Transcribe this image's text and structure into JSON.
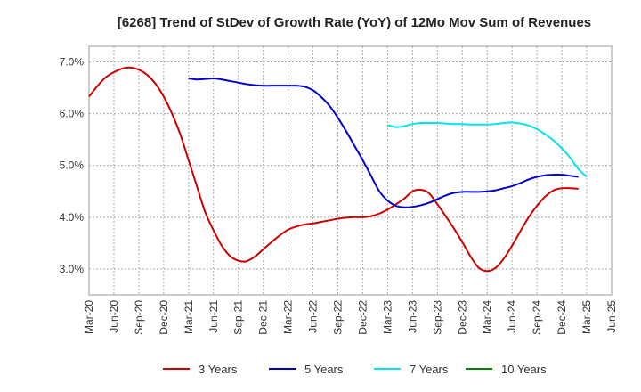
{
  "chart_data": {
    "type": "line",
    "title": "[6268]  Trend of StDev of Growth Rate (YoY) of 12Mo Mov Sum of Revenues",
    "xlabel": "",
    "ylabel": "",
    "x_ticks": [
      "Mar-20",
      "Jun-20",
      "Sep-20",
      "Dec-20",
      "Mar-21",
      "Jun-21",
      "Sep-21",
      "Dec-21",
      "Mar-22",
      "Jun-22",
      "Sep-22",
      "Dec-22",
      "Mar-23",
      "Jun-23",
      "Sep-23",
      "Dec-23",
      "Mar-24",
      "Jun-24",
      "Sep-24",
      "Dec-24",
      "Mar-25",
      "Jun-25"
    ],
    "y_ticks": [
      "3.0%",
      "4.0%",
      "5.0%",
      "6.0%",
      "7.0%"
    ],
    "y_tick_values": [
      3.0,
      4.0,
      5.0,
      6.0,
      7.0
    ],
    "ylim": [
      2.5,
      7.3
    ],
    "x_range_months": [
      0,
      63
    ],
    "grid": true,
    "legend_position": "bottom",
    "series": [
      {
        "name": "3 Years",
        "color": "#cc0000",
        "points": [
          [
            0,
            6.33
          ],
          [
            1,
            6.53
          ],
          [
            2,
            6.7
          ],
          [
            3,
            6.8
          ],
          [
            4,
            6.87
          ],
          [
            5,
            6.89
          ],
          [
            6,
            6.85
          ],
          [
            7,
            6.75
          ],
          [
            8,
            6.58
          ],
          [
            9,
            6.33
          ],
          [
            10,
            6.0
          ],
          [
            11,
            5.6
          ],
          [
            12,
            5.1
          ],
          [
            13,
            4.6
          ],
          [
            14,
            4.1
          ],
          [
            15,
            3.75
          ],
          [
            16,
            3.45
          ],
          [
            17,
            3.25
          ],
          [
            18,
            3.16
          ],
          [
            19,
            3.15
          ],
          [
            20,
            3.24
          ],
          [
            21,
            3.38
          ],
          [
            22,
            3.52
          ],
          [
            23,
            3.65
          ],
          [
            24,
            3.76
          ],
          [
            25,
            3.82
          ],
          [
            26,
            3.86
          ],
          [
            27,
            3.88
          ],
          [
            28,
            3.91
          ],
          [
            29,
            3.94
          ],
          [
            30,
            3.97
          ],
          [
            31,
            3.99
          ],
          [
            32,
            4.0
          ],
          [
            33,
            4.0
          ],
          [
            34,
            4.02
          ],
          [
            35,
            4.07
          ],
          [
            36,
            4.15
          ],
          [
            37,
            4.25
          ],
          [
            38,
            4.36
          ],
          [
            39,
            4.5
          ],
          [
            40,
            4.53
          ],
          [
            41,
            4.46
          ],
          [
            42,
            4.25
          ],
          [
            43,
            4.02
          ],
          [
            44,
            3.78
          ],
          [
            45,
            3.52
          ],
          [
            46,
            3.24
          ],
          [
            47,
            3.02
          ],
          [
            48,
            2.96
          ],
          [
            49,
            3.02
          ],
          [
            50,
            3.2
          ],
          [
            51,
            3.45
          ],
          [
            52,
            3.73
          ],
          [
            53,
            4.0
          ],
          [
            54,
            4.22
          ],
          [
            55,
            4.4
          ],
          [
            56,
            4.52
          ],
          [
            57,
            4.56
          ],
          [
            58,
            4.56
          ],
          [
            59,
            4.55
          ]
        ]
      },
      {
        "name": "5 Years",
        "color": "#0000cc",
        "points": [
          [
            12,
            6.68
          ],
          [
            13,
            6.66
          ],
          [
            14,
            6.67
          ],
          [
            15,
            6.68
          ],
          [
            16,
            6.66
          ],
          [
            17,
            6.63
          ],
          [
            18,
            6.6
          ],
          [
            19,
            6.57
          ],
          [
            20,
            6.55
          ],
          [
            21,
            6.54
          ],
          [
            22,
            6.54
          ],
          [
            23,
            6.54
          ],
          [
            24,
            6.54
          ],
          [
            25,
            6.54
          ],
          [
            26,
            6.52
          ],
          [
            27,
            6.45
          ],
          [
            28,
            6.32
          ],
          [
            29,
            6.15
          ],
          [
            30,
            5.92
          ],
          [
            31,
            5.66
          ],
          [
            32,
            5.38
          ],
          [
            33,
            5.1
          ],
          [
            34,
            4.8
          ],
          [
            35,
            4.5
          ],
          [
            36,
            4.32
          ],
          [
            37,
            4.22
          ],
          [
            38,
            4.19
          ],
          [
            39,
            4.2
          ],
          [
            40,
            4.23
          ],
          [
            41,
            4.28
          ],
          [
            42,
            4.35
          ],
          [
            43,
            4.42
          ],
          [
            44,
            4.47
          ],
          [
            45,
            4.49
          ],
          [
            46,
            4.49
          ],
          [
            47,
            4.49
          ],
          [
            48,
            4.5
          ],
          [
            49,
            4.52
          ],
          [
            50,
            4.56
          ],
          [
            51,
            4.6
          ],
          [
            52,
            4.66
          ],
          [
            53,
            4.73
          ],
          [
            54,
            4.78
          ],
          [
            55,
            4.81
          ],
          [
            56,
            4.82
          ],
          [
            57,
            4.82
          ],
          [
            58,
            4.8
          ],
          [
            59,
            4.78
          ]
        ]
      },
      {
        "name": "7 Years",
        "color": "#00e5ee",
        "points": [
          [
            36,
            5.78
          ],
          [
            37,
            5.74
          ],
          [
            38,
            5.76
          ],
          [
            39,
            5.8
          ],
          [
            40,
            5.82
          ],
          [
            41,
            5.82
          ],
          [
            42,
            5.82
          ],
          [
            43,
            5.81
          ],
          [
            44,
            5.8
          ],
          [
            45,
            5.8
          ],
          [
            46,
            5.79
          ],
          [
            47,
            5.79
          ],
          [
            48,
            5.79
          ],
          [
            49,
            5.8
          ],
          [
            50,
            5.82
          ],
          [
            51,
            5.83
          ],
          [
            52,
            5.81
          ],
          [
            53,
            5.77
          ],
          [
            54,
            5.7
          ],
          [
            55,
            5.6
          ],
          [
            56,
            5.48
          ],
          [
            57,
            5.33
          ],
          [
            58,
            5.15
          ],
          [
            59,
            4.93
          ],
          [
            60,
            4.78
          ]
        ]
      },
      {
        "name": "10 Years",
        "color": "#008000",
        "points": []
      }
    ]
  }
}
